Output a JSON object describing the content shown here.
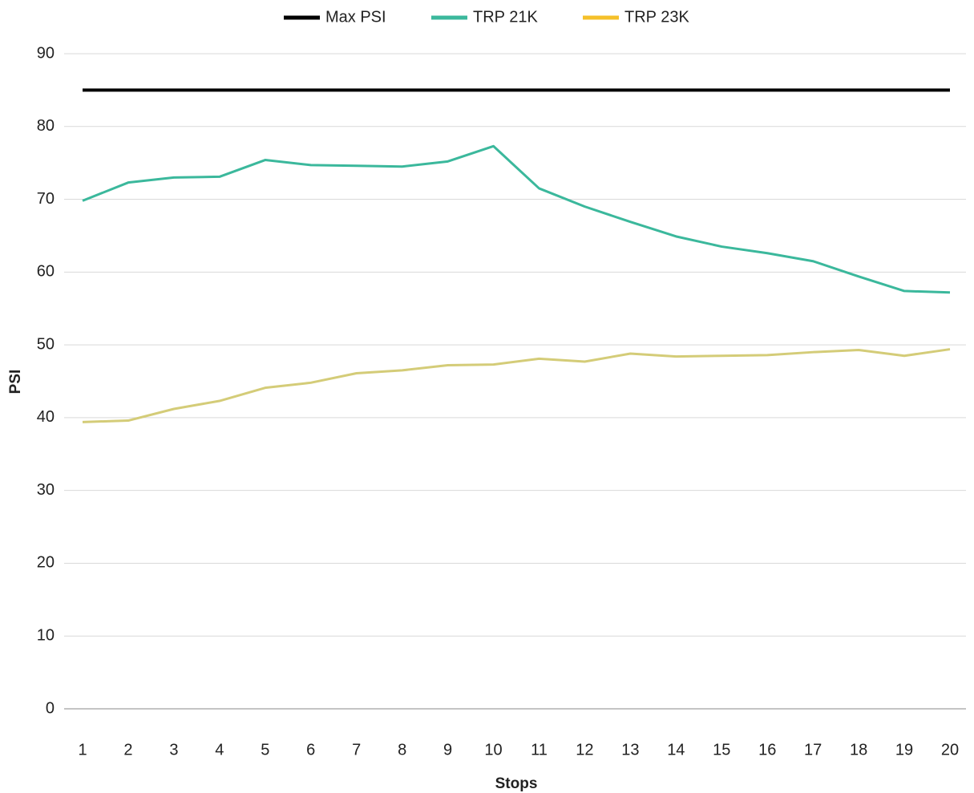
{
  "chart_data": {
    "type": "line",
    "x_label": "Stops",
    "y_label": "PSI",
    "categories": [
      "1",
      "2",
      "3",
      "4",
      "5",
      "6",
      "7",
      "8",
      "9",
      "10",
      "11",
      "12",
      "13",
      "14",
      "15",
      "16",
      "17",
      "18",
      "19",
      "20"
    ],
    "series": [
      {
        "name": "Max PSI",
        "color": "#000000",
        "values": [
          85,
          85,
          85,
          85,
          85,
          85,
          85,
          85,
          85,
          85,
          85,
          85,
          85,
          85,
          85,
          85,
          85,
          85,
          85,
          85
        ]
      },
      {
        "name": "TRP 21K",
        "color": "#3bb89c",
        "values": [
          69.8,
          72.3,
          73.0,
          73.1,
          75.4,
          74.7,
          74.6,
          74.5,
          75.2,
          77.3,
          71.5,
          69.0,
          66.9,
          64.9,
          63.5,
          62.6,
          61.5,
          59.4,
          57.4,
          57.2
        ]
      },
      {
        "name": "TRP 23K",
        "color": "#d4cc78",
        "legend_color": "#f5c02a",
        "values": [
          39.4,
          39.6,
          41.2,
          42.3,
          44.1,
          44.8,
          46.1,
          46.5,
          47.2,
          47.3,
          48.1,
          47.7,
          48.8,
          48.4,
          48.5,
          48.6,
          49.0,
          49.3,
          48.5,
          49.4
        ]
      }
    ],
    "ylim": [
      0,
      90
    ],
    "yticks": [
      0,
      10,
      20,
      30,
      40,
      50,
      60,
      70,
      80,
      90
    ],
    "grid": true,
    "legend": "top"
  }
}
